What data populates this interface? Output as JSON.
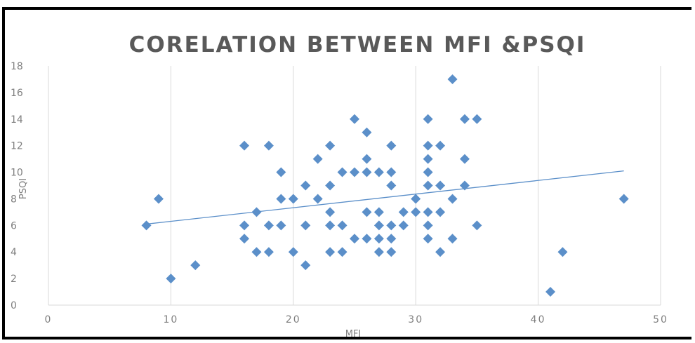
{
  "chart_data": {
    "type": "scatter",
    "title": "CORELATION BETWEEN MFI &PSQI",
    "xlabel": "MFI",
    "ylabel": "PSQI",
    "xlim": [
      0,
      50
    ],
    "ylim": [
      0,
      18
    ],
    "xticks": [
      0,
      10,
      20,
      30,
      40,
      50
    ],
    "yticks": [
      0,
      2,
      4,
      6,
      8,
      10,
      12,
      14,
      16,
      18
    ],
    "grid": "vertical",
    "marker_color": "#5b8fc9",
    "trendline_color": "#5b8fc9",
    "series": [
      {
        "points": [
          [
            8,
            6
          ],
          [
            9,
            8
          ],
          [
            10,
            2
          ],
          [
            12,
            3
          ],
          [
            16,
            12
          ],
          [
            16,
            6
          ],
          [
            16,
            5
          ],
          [
            17,
            7
          ],
          [
            17,
            4
          ],
          [
            18,
            12
          ],
          [
            18,
            6
          ],
          [
            18,
            4
          ],
          [
            19,
            10
          ],
          [
            19,
            8
          ],
          [
            19,
            6
          ],
          [
            20,
            8
          ],
          [
            20,
            4
          ],
          [
            21,
            9
          ],
          [
            21,
            6
          ],
          [
            21,
            3
          ],
          [
            22,
            11
          ],
          [
            22,
            8
          ],
          [
            23,
            12
          ],
          [
            23,
            9
          ],
          [
            23,
            7
          ],
          [
            23,
            6
          ],
          [
            23,
            4
          ],
          [
            24,
            10
          ],
          [
            24,
            6
          ],
          [
            24,
            4
          ],
          [
            25,
            14
          ],
          [
            25,
            10
          ],
          [
            25,
            5
          ],
          [
            26,
            13
          ],
          [
            26,
            11
          ],
          [
            26,
            10
          ],
          [
            26,
            7
          ],
          [
            26,
            5
          ],
          [
            27,
            10
          ],
          [
            27,
            7
          ],
          [
            27,
            6
          ],
          [
            27,
            5
          ],
          [
            27,
            4
          ],
          [
            28,
            12
          ],
          [
            28,
            10
          ],
          [
            28,
            9
          ],
          [
            28,
            6
          ],
          [
            28,
            5
          ],
          [
            28,
            4
          ],
          [
            29,
            7
          ],
          [
            29,
            6
          ],
          [
            30,
            8
          ],
          [
            30,
            7
          ],
          [
            31,
            14
          ],
          [
            31,
            12
          ],
          [
            31,
            11
          ],
          [
            31,
            10
          ],
          [
            31,
            9
          ],
          [
            31,
            7
          ],
          [
            31,
            6
          ],
          [
            31,
            5
          ],
          [
            32,
            12
          ],
          [
            32,
            9
          ],
          [
            32,
            7
          ],
          [
            32,
            4
          ],
          [
            33,
            17
          ],
          [
            33,
            8
          ],
          [
            33,
            5
          ],
          [
            34,
            14
          ],
          [
            34,
            11
          ],
          [
            34,
            9
          ],
          [
            35,
            14
          ],
          [
            35,
            6
          ],
          [
            41,
            1
          ],
          [
            42,
            4
          ],
          [
            47,
            8
          ]
        ]
      }
    ],
    "trendline": {
      "x": [
        8,
        47
      ],
      "y": [
        6.1,
        10.1
      ]
    }
  }
}
